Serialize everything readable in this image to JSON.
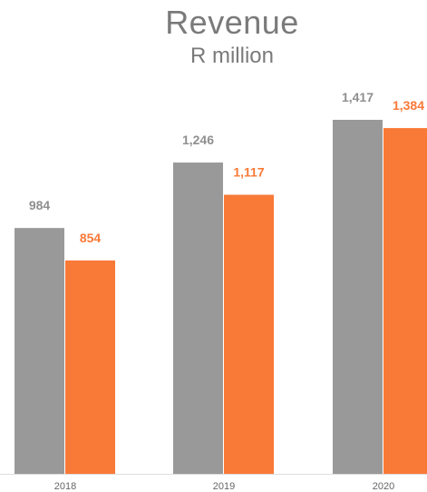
{
  "chart_data": {
    "type": "bar",
    "title": "Revenue",
    "subtitle": "R million",
    "categories": [
      "2018",
      "2019",
      "2020"
    ],
    "series": [
      {
        "values": [
          984,
          1246,
          1417
        ],
        "labels": [
          "984",
          "1,246",
          "1,417"
        ],
        "color": "#999999"
      },
      {
        "values": [
          854,
          1117,
          1384
        ],
        "labels": [
          "854",
          "1,117",
          "1,384"
        ],
        "color": "#f97937"
      }
    ],
    "ylim": [
      0,
      1417
    ],
    "grid": false,
    "legend": "none"
  }
}
